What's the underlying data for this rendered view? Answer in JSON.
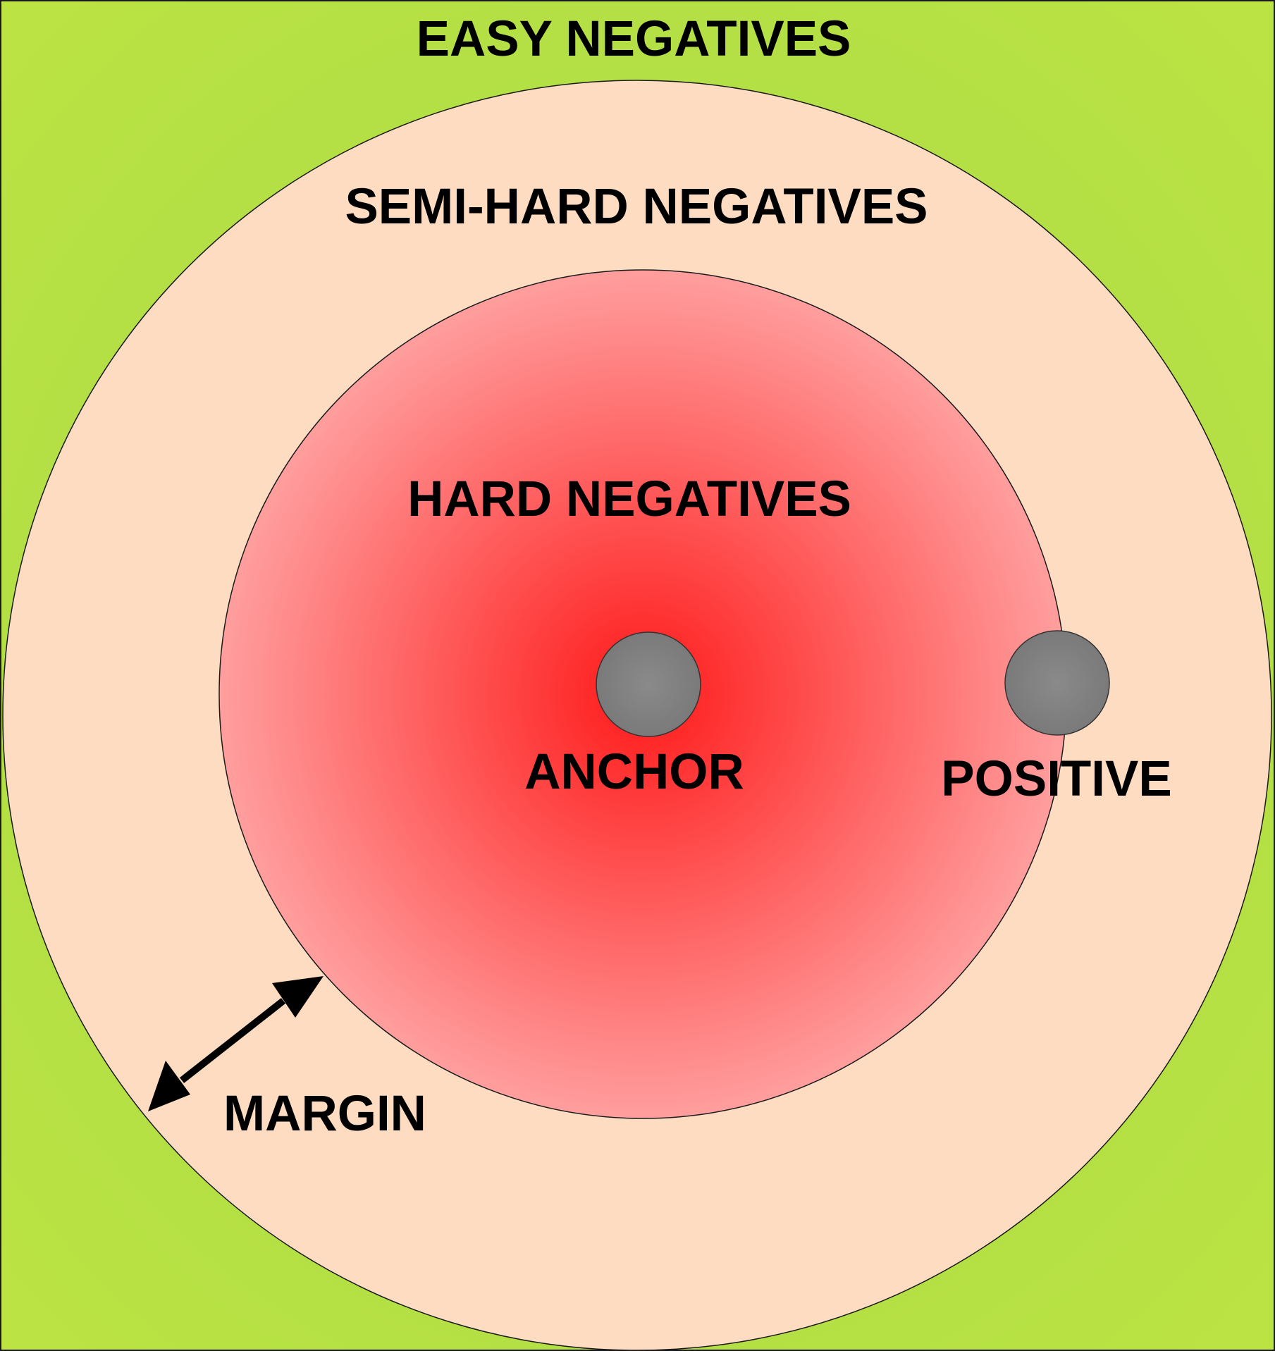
{
  "labels": {
    "easy": "EASY NEGATIVES",
    "semi_hard": "SEMI-HARD NEGATIVES",
    "hard": "HARD NEGATIVES",
    "anchor": "ANCHOR",
    "positive": "POSITIVE",
    "margin": "MARGIN"
  },
  "colors": {
    "easy_zone": "#a5d94a",
    "easy_zone_edge": "#bde442",
    "semi_hard_zone": "#fedcc1",
    "hard_zone_center": "#ff1a1a",
    "hard_zone_edge": "#ff9e9e",
    "point": "#7f7f7f",
    "outline": "#1a1a1a"
  }
}
